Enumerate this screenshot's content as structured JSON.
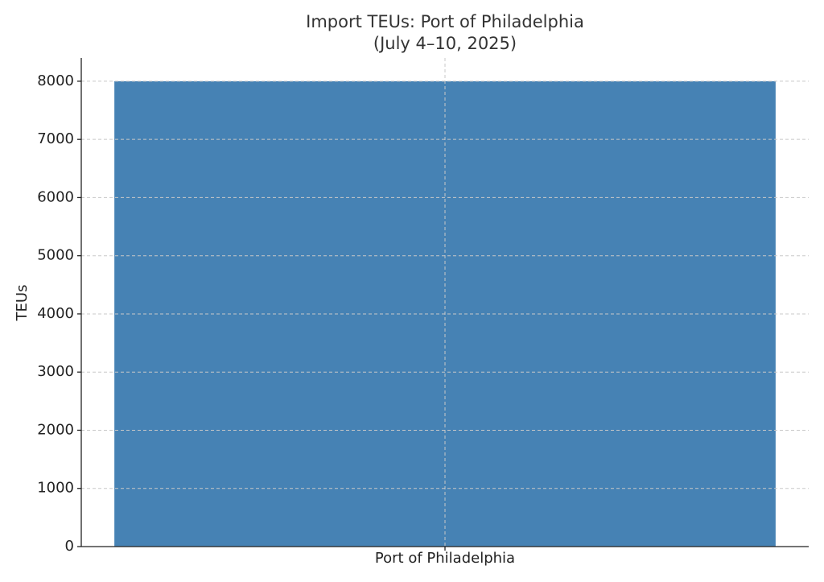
{
  "chart_data": {
    "type": "bar",
    "title": [
      "Import TEUs: Port of Philadelphia",
      "(July 4–10, 2025)"
    ],
    "ylabel": "TEUs",
    "categories": [
      "Port of Philadelphia"
    ],
    "values": [
      8000
    ],
    "color": "#4682b4",
    "ylim": [
      0,
      8400
    ],
    "yticks": [
      0,
      1000,
      2000,
      3000,
      4000,
      5000,
      6000,
      7000,
      8000
    ],
    "grid": true
  }
}
